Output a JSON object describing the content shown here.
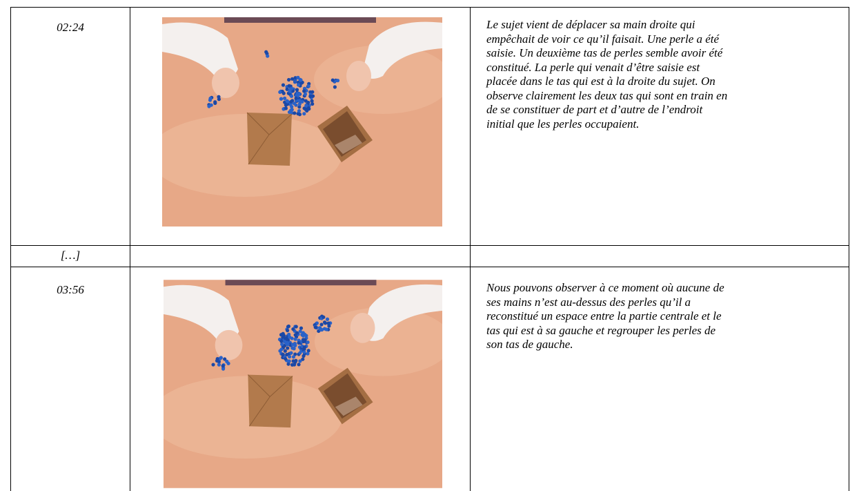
{
  "table": {
    "rows": [
      {
        "time": "02:24",
        "description": [
          "Le sujet vient de déplacer sa main droite qui",
          "empêchait de voir ce qu’il faisait. Une perle a été",
          "saisie. Un deuxième tas de perles semble avoir été",
          "constitué. La perle qui venait d’être saisie est",
          "placée dans le tas qui est à la droite du sujet. On",
          "observe clairement les deux tas qui sont en train en",
          "de se constituer de part et d’autre de l’endroit",
          "initial que les perles occupaient."
        ]
      },
      {
        "time": "[…]",
        "description": []
      },
      {
        "time": "03:56",
        "description": [
          "Nous pouvons observer à ce moment où aucune de",
          "ses mains n’est au-dessus des perles qu’il a",
          "reconstitué un espace entre la partie centrale et le",
          "tas qui est à sa gauche et regrouper les perles de",
          "son tas de gauche."
        ]
      }
    ]
  }
}
